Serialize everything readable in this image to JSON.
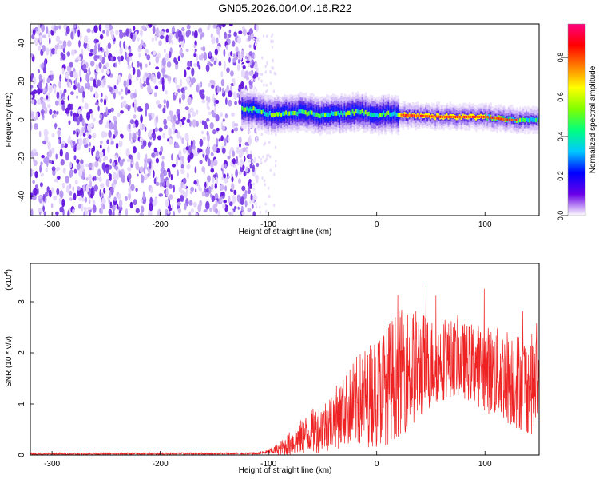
{
  "title": "GN05.2026.004.04.16.R22",
  "chart_data": [
    {
      "type": "heatmap",
      "name": "spectrogram",
      "xlabel": "Height of straight line (km)",
      "ylabel": "Frequency (Hz)",
      "xlim": [
        -320,
        150
      ],
      "ylim": [
        -50,
        50
      ],
      "xticks": [
        -300,
        -200,
        -100,
        0,
        100
      ],
      "yticks": [
        -40,
        -20,
        0,
        20,
        40
      ],
      "xtick_labels": [
        "-300",
        "-200",
        "-100",
        "0",
        "100"
      ],
      "ytick_labels": [
        "-40",
        "-20",
        "0",
        "20",
        "40"
      ],
      "noise_region_km": [
        -320,
        -118
      ],
      "signal_trace": {
        "x": [
          -125,
          -110,
          -100,
          -90,
          -80,
          -70,
          -60,
          -50,
          -40,
          -30,
          -20,
          -10,
          0,
          10,
          20,
          40,
          60,
          80,
          100,
          120,
          140,
          150
        ],
        "freq": [
          6,
          5,
          3,
          3,
          3.5,
          4,
          3,
          2.5,
          3,
          3,
          4,
          3.5,
          2.5,
          3.5,
          2.5,
          2,
          1.5,
          1.5,
          1.5,
          0,
          -0.5,
          -0.5
        ]
      },
      "colorbar": {
        "label": "Normalized spectral amplitude",
        "range": [
          0,
          0.97
        ],
        "ticks": [
          0.0,
          0.2,
          0.4,
          0.6,
          0.8
        ],
        "tick_labels": [
          "0.0",
          "0.2",
          "0.4",
          "0.6",
          "0.8"
        ],
        "colors": [
          "#ffffff",
          "#6a00e8",
          "#0000ff",
          "#00c8ff",
          "#00ff80",
          "#7fff00",
          "#ffff00",
          "#ff8000",
          "#ff0000",
          "#ff0080"
        ]
      }
    },
    {
      "type": "line",
      "name": "snr",
      "xlabel": "Height of straight line (km)",
      "ylabel": "SNR (10 * v/v)",
      "y_scale_label": "(x10",
      "y_scale_exp": "4",
      "xlim": [
        -320,
        150
      ],
      "ylim": [
        0,
        3.75
      ],
      "xticks": [
        -300,
        -200,
        -100,
        0,
        100
      ],
      "yticks": [
        0,
        1,
        2,
        3
      ],
      "xtick_labels": [
        "-300",
        "-200",
        "-100",
        "0",
        "100"
      ],
      "ytick_labels": [
        "0",
        "1",
        "2",
        "3"
      ],
      "color": "#ee2222",
      "envelope": {
        "x": [
          -320,
          -110,
          -100,
          -90,
          -80,
          -70,
          -60,
          -50,
          -40,
          -30,
          -20,
          -10,
          0,
          10,
          20,
          30,
          40,
          50,
          60,
          70,
          80,
          90,
          100,
          110,
          120,
          130,
          140,
          150
        ],
        "mean": [
          0.02,
          0.03,
          0.06,
          0.12,
          0.22,
          0.35,
          0.45,
          0.55,
          0.7,
          0.85,
          1.0,
          1.15,
          1.25,
          1.4,
          1.6,
          1.7,
          1.75,
          1.8,
          1.85,
          1.9,
          1.85,
          1.8,
          1.7,
          1.6,
          1.55,
          1.5,
          1.4,
          1.35
        ],
        "amplitude": [
          0.02,
          0.02,
          0.05,
          0.12,
          0.25,
          0.35,
          0.45,
          0.5,
          0.6,
          0.7,
          0.9,
          1.0,
          1.1,
          1.2,
          1.25,
          1.2,
          1.1,
          0.9,
          0.8,
          0.75,
          0.75,
          0.8,
          0.85,
          0.9,
          0.95,
          1.0,
          1.0,
          1.0
        ]
      }
    }
  ]
}
